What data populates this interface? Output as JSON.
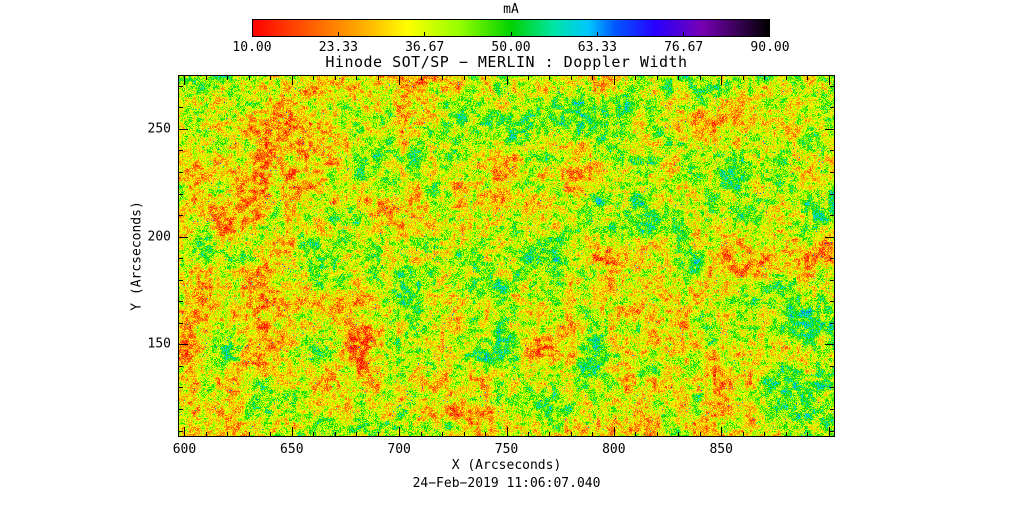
{
  "figure": {
    "title": "Hinode SOT/SP − MERLIN : Doppler Width",
    "timestamp": "24−Feb−2019 11:06:07.040",
    "colorbar": {
      "label": "mA",
      "tick_labels": [
        "10.00",
        "23.33",
        "36.67",
        "50.00",
        "63.33",
        "76.67",
        "90.00"
      ],
      "min": 10,
      "max": 90
    },
    "xaxis": {
      "label": "X (Arcseconds)",
      "tick_labels": [
        "600",
        "650",
        "700",
        "750",
        "800",
        "850"
      ],
      "tick_values": [
        600,
        650,
        700,
        750,
        800,
        850
      ]
    },
    "yaxis": {
      "label": "Y (Arcseconds)",
      "tick_labels": [
        "150",
        "200",
        "250"
      ],
      "tick_values": [
        150,
        200,
        250
      ]
    }
  },
  "chart_data": {
    "type": "heatmap",
    "title": "Hinode SOT/SP − MERLIN : Doppler Width",
    "xlabel": "X (Arcseconds)",
    "ylabel": "Y (Arcseconds)",
    "xlim": [
      597,
      903
    ],
    "ylim": [
      107,
      275
    ],
    "colorbar_label": "mA",
    "value_range": [
      10,
      90
    ],
    "colorbar_ticks": [
      10.0,
      23.33,
      36.67,
      50.0,
      63.33,
      76.67,
      90.0
    ],
    "x_major_tick_step": 50,
    "x_minor_tick_step": 10,
    "y_major_tick_step": 50,
    "y_minor_tick_step": 10,
    "colormap": "rainbow: red -> orange -> yellow -> green -> cyan -> blue -> violet -> black",
    "colormap_stops": [
      {
        "t": 0.0,
        "color": "#ff0000"
      },
      {
        "t": 0.12,
        "color": "#ff6400"
      },
      {
        "t": 0.22,
        "color": "#ffb400"
      },
      {
        "t": 0.3,
        "color": "#ffff00"
      },
      {
        "t": 0.4,
        "color": "#96ff00"
      },
      {
        "t": 0.5,
        "color": "#00d200"
      },
      {
        "t": 0.58,
        "color": "#00e6a0"
      },
      {
        "t": 0.65,
        "color": "#00c8ff"
      },
      {
        "t": 0.7,
        "color": "#005aff"
      },
      {
        "t": 0.78,
        "color": "#2800ff"
      },
      {
        "t": 0.87,
        "color": "#7800b4"
      },
      {
        "t": 1.0,
        "color": "#000000"
      }
    ],
    "field_description": "Fine granular solar Doppler-width map; values mostly 18-55 mA rendered as mixed orange/yellow/green speckle, redder toward smaller X, greener toward larger X, with sparse cyan (~60-68 mA) and deep-red (~12 mA) pixels.",
    "noise_model": {
      "seed": 20190224,
      "base_t": 0.3,
      "x_gradient_t": 0.06,
      "octave_cells": [
        46,
        14,
        4,
        1
      ],
      "octave_amps": [
        0.12,
        0.11,
        0.13,
        0.11
      ],
      "speck_probability": 0.004,
      "speck_t_range": [
        0.6,
        0.72
      ]
    }
  }
}
